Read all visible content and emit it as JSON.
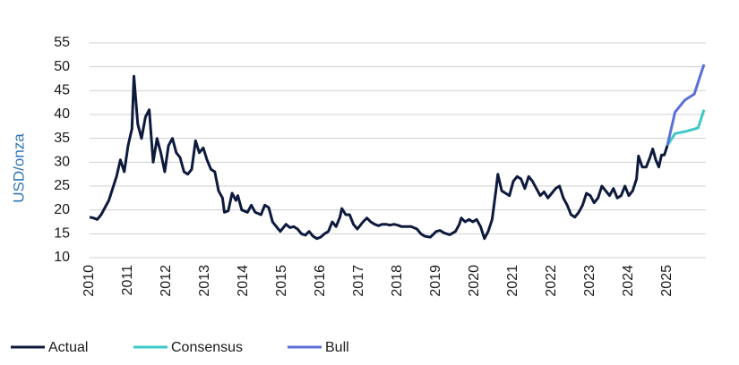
{
  "chart_data": {
    "type": "line",
    "y_label": "USD/onza",
    "xlim": [
      2010,
      2026
    ],
    "xticks": [
      2010,
      2011,
      2012,
      2013,
      2014,
      2015,
      2016,
      2017,
      2018,
      2019,
      2020,
      2021,
      2022,
      2023,
      2024,
      2025
    ],
    "ylim": [
      10,
      55
    ],
    "yticks": [
      10,
      15,
      20,
      25,
      30,
      35,
      40,
      45,
      50,
      55
    ],
    "grid": true,
    "legend": "bottom-left",
    "series": [
      {
        "name": "Actual",
        "color": "#0e1a3d",
        "x": [
          2010.0,
          2010.1,
          2010.2,
          2010.3,
          2010.5,
          2010.7,
          2010.8,
          2010.9,
          2011.0,
          2011.1,
          2011.15,
          2011.25,
          2011.35,
          2011.45,
          2011.55,
          2011.65,
          2011.75,
          2011.85,
          2011.95,
          2012.05,
          2012.15,
          2012.25,
          2012.35,
          2012.45,
          2012.55,
          2012.65,
          2012.75,
          2012.85,
          2012.95,
          2013.05,
          2013.15,
          2013.25,
          2013.35,
          2013.45,
          2013.5,
          2013.6,
          2013.7,
          2013.8,
          2013.85,
          2013.95,
          2014.1,
          2014.2,
          2014.3,
          2014.45,
          2014.55,
          2014.65,
          2014.75,
          2014.85,
          2014.95,
          2015.1,
          2015.2,
          2015.3,
          2015.4,
          2015.5,
          2015.6,
          2015.7,
          2015.8,
          2015.9,
          2016.0,
          2016.1,
          2016.2,
          2016.3,
          2016.4,
          2016.5,
          2016.55,
          2016.65,
          2016.75,
          2016.85,
          2016.95,
          2017.1,
          2017.2,
          2017.3,
          2017.4,
          2017.5,
          2017.6,
          2017.7,
          2017.8,
          2017.9,
          2018.0,
          2018.1,
          2018.2,
          2018.35,
          2018.5,
          2018.6,
          2018.7,
          2018.85,
          2019.0,
          2019.1,
          2019.2,
          2019.35,
          2019.5,
          2019.6,
          2019.65,
          2019.75,
          2019.85,
          2019.95,
          2020.05,
          2020.15,
          2020.25,
          2020.35,
          2020.45,
          2020.55,
          2020.6,
          2020.7,
          2020.8,
          2020.9,
          2021.0,
          2021.1,
          2021.2,
          2021.3,
          2021.4,
          2021.5,
          2021.6,
          2021.7,
          2021.8,
          2021.9,
          2022.0,
          2022.1,
          2022.2,
          2022.3,
          2022.4,
          2022.5,
          2022.6,
          2022.7,
          2022.8,
          2022.9,
          2023.0,
          2023.1,
          2023.2,
          2023.3,
          2023.4,
          2023.5,
          2023.6,
          2023.7,
          2023.8,
          2023.9,
          2024.0,
          2024.1,
          2024.2,
          2024.25,
          2024.35,
          2024.45,
          2024.55,
          2024.62,
          2024.7,
          2024.78,
          2024.85,
          2024.92,
          2025.0
        ],
        "values": [
          18.5,
          18.3,
          18.0,
          19,
          22,
          27,
          30.5,
          28,
          33.5,
          37,
          48,
          38,
          35,
          39.5,
          41,
          30,
          35,
          32,
          28,
          33.5,
          35,
          32,
          31,
          28,
          27.5,
          28.5,
          34.5,
          32,
          33,
          30.5,
          28.5,
          28,
          24,
          22.5,
          19.5,
          19.8,
          23.5,
          22,
          23,
          20,
          19.5,
          21,
          19.5,
          19,
          21,
          20.5,
          17.5,
          16.5,
          15.5,
          17,
          16.3,
          16.5,
          16,
          15,
          14.7,
          15.5,
          14.5,
          14,
          14.3,
          15,
          15.5,
          17.5,
          16.5,
          18.5,
          20.3,
          19,
          19,
          17,
          16,
          17.5,
          18.3,
          17.5,
          17,
          16.7,
          17,
          17,
          16.8,
          17,
          16.8,
          16.5,
          16.5,
          16.5,
          16,
          15,
          14.5,
          14.3,
          15.5,
          15.7,
          15.2,
          14.8,
          15.5,
          17,
          18.3,
          17.5,
          18,
          17.5,
          18,
          16.5,
          14,
          15.5,
          18,
          24,
          27.5,
          24,
          23.5,
          23,
          26,
          27,
          26.5,
          24.5,
          27,
          26,
          24.5,
          23,
          23.8,
          22.5,
          23.5,
          24.5,
          25,
          22.5,
          21,
          19,
          18.5,
          19.5,
          21,
          23.5,
          23,
          21.5,
          22.5,
          25,
          24,
          23,
          24.5,
          22.5,
          23,
          25,
          23,
          24,
          26.5,
          31.3,
          29,
          29,
          31,
          32.8,
          30.5,
          29,
          31.5,
          31.5,
          33.5
        ]
      },
      {
        "name": "Consensus",
        "color": "#3ec8c8",
        "x": [
          2025.0,
          2025.2,
          2025.5,
          2025.8,
          2025.95
        ],
        "values": [
          33.5,
          36,
          36.5,
          37.2,
          41
        ]
      },
      {
        "name": "Bull",
        "color": "#5b6fd8",
        "x": [
          2025.0,
          2025.2,
          2025.45,
          2025.7,
          2025.95
        ],
        "values": [
          33.5,
          40.5,
          43,
          44.3,
          50.5
        ]
      }
    ]
  }
}
